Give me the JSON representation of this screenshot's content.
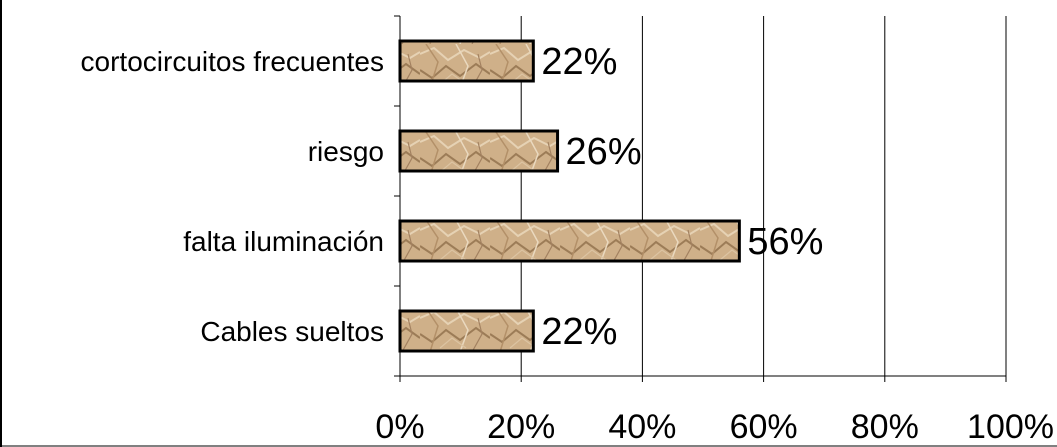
{
  "chart_data": {
    "type": "bar",
    "orientation": "horizontal",
    "categories": [
      "Cables sueltos",
      "falta iluminación",
      "riesgo",
      "cortocircuitos frecuentes"
    ],
    "values": [
      0.22,
      0.56,
      0.26,
      0.22
    ],
    "data_labels": [
      "22%",
      "56%",
      "26%",
      "22%"
    ],
    "x_ticks": [
      "0%",
      "20%",
      "40%",
      "60%",
      "80%",
      "100%"
    ],
    "xlim": [
      0,
      1
    ],
    "grid": "vertical major gridlines",
    "legend": "none",
    "title": "",
    "xlabel": "",
    "ylabel": "",
    "bar_fill": "crumpled kraft paper texture",
    "colors": {
      "bar_base": "#cfb089",
      "bar_light": "#e6d2b4",
      "bar_dark": "#9c7c57",
      "bar_border": "#000000",
      "gridline": "#000000"
    }
  }
}
